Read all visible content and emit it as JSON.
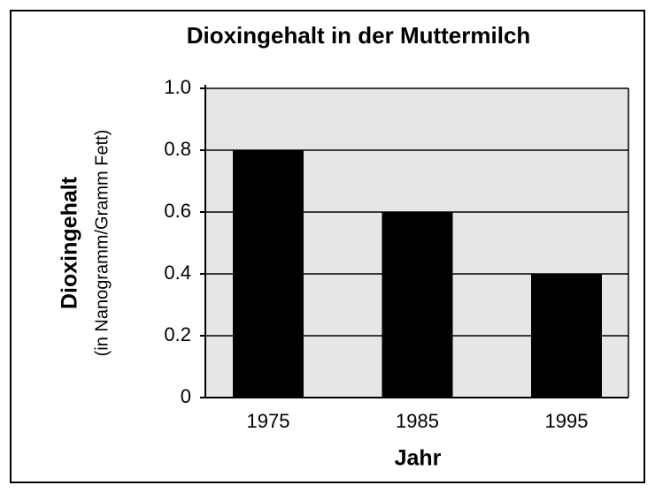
{
  "chart_data": {
    "type": "bar",
    "title": "Dioxingehalt in der Muttermilch",
    "ylabel": [
      "Dioxingehalt",
      "(in Nanogramm/Gramm Fett)"
    ],
    "xlabel": "Jahr",
    "categories": [
      "1975",
      "1985",
      "1995"
    ],
    "values": [
      0.8,
      0.6,
      0.4
    ],
    "color": "#000000",
    "ylim": [
      0,
      1.0
    ],
    "yticks": [
      0,
      0.2,
      0.4,
      0.6,
      0.8,
      {
        "value": 1.0,
        "label": "1.0"
      }
    ],
    "grid": true
  }
}
